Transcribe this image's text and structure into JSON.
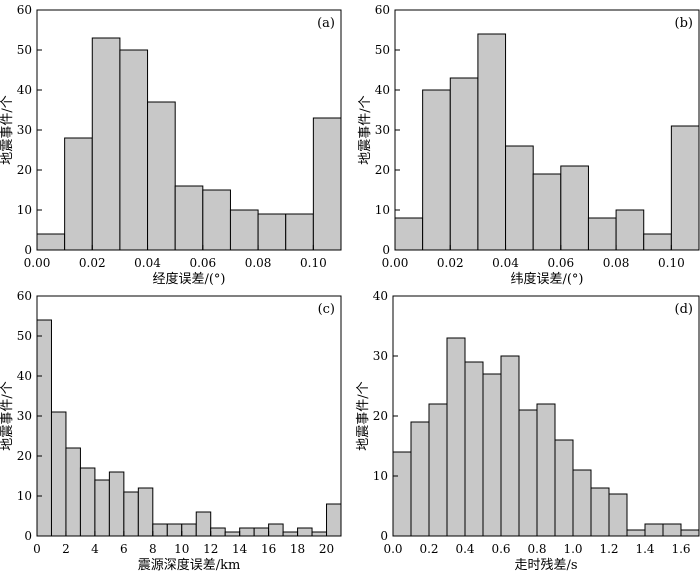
{
  "chart_data": [
    {
      "type": "bar",
      "panel": "(a)",
      "xlabel": "经度误差/(°)",
      "ylabel": "地震事件/个",
      "bin_width": 0.01,
      "bin_starts": [
        0.0,
        0.01,
        0.02,
        0.03,
        0.04,
        0.05,
        0.06,
        0.07,
        0.08,
        0.09,
        0.1
      ],
      "values": [
        4,
        28,
        53,
        50,
        37,
        16,
        15,
        10,
        9,
        9,
        33
      ],
      "xlim": [
        0,
        0.11
      ],
      "ylim": [
        0,
        60
      ],
      "xticks": [
        0,
        0.02,
        0.04,
        0.06,
        0.08,
        0.1
      ],
      "xtick_labels": [
        "0.00",
        "0.02",
        "0.04",
        "0.06",
        "0.08",
        "0.10"
      ],
      "yticks": [
        0,
        10,
        20,
        30,
        40,
        50,
        60
      ],
      "ytick_labels": [
        "0",
        "10",
        "20",
        "30",
        "40",
        "50",
        "60"
      ],
      "bar_color": "#c8c8c8"
    },
    {
      "type": "bar",
      "panel": "(b)",
      "xlabel": "纬度误差/(°)",
      "ylabel": "地震事件/个",
      "bin_width": 0.01,
      "bin_starts": [
        0.0,
        0.01,
        0.02,
        0.03,
        0.04,
        0.05,
        0.06,
        0.07,
        0.08,
        0.09,
        0.1
      ],
      "values": [
        8,
        40,
        43,
        54,
        26,
        19,
        21,
        8,
        10,
        4,
        31
      ],
      "xlim": [
        0,
        0.11
      ],
      "ylim": [
        0,
        60
      ],
      "xticks": [
        0,
        0.02,
        0.04,
        0.06,
        0.08,
        0.1
      ],
      "xtick_labels": [
        "0.00",
        "0.02",
        "0.04",
        "0.06",
        "0.08",
        "0.10"
      ],
      "yticks": [
        0,
        10,
        20,
        30,
        40,
        50,
        60
      ],
      "ytick_labels": [
        "0",
        "10",
        "20",
        "30",
        "40",
        "50",
        "60"
      ],
      "bar_color": "#c8c8c8"
    },
    {
      "type": "bar",
      "panel": "(c)",
      "xlabel": "震源深度误差/km",
      "ylabel": "地震事件/个",
      "bin_width": 1,
      "bin_starts": [
        0,
        1,
        2,
        3,
        4,
        5,
        6,
        7,
        8,
        9,
        10,
        11,
        12,
        13,
        14,
        15,
        16,
        17,
        18,
        19,
        20
      ],
      "values": [
        54,
        31,
        22,
        17,
        14,
        16,
        11,
        12,
        3,
        3,
        3,
        6,
        2,
        1,
        2,
        2,
        3,
        1,
        2,
        1,
        8
      ],
      "xlim": [
        0,
        21
      ],
      "ylim": [
        0,
        60
      ],
      "xticks": [
        0,
        2,
        4,
        6,
        8,
        10,
        12,
        14,
        16,
        18,
        20
      ],
      "xtick_labels": [
        "0",
        "2",
        "4",
        "6",
        "8",
        "10",
        "12",
        "14",
        "16",
        "18",
        "20"
      ],
      "yticks": [
        0,
        10,
        20,
        30,
        40,
        50,
        60
      ],
      "ytick_labels": [
        "0",
        "10",
        "20",
        "30",
        "40",
        "50",
        "60"
      ],
      "bar_color": "#c8c8c8"
    },
    {
      "type": "bar",
      "panel": "(d)",
      "xlabel": "走时残差/s",
      "ylabel": "地震事件/个",
      "bin_width": 0.1,
      "bin_starts": [
        0.0,
        0.1,
        0.2,
        0.3,
        0.4,
        0.5,
        0.6,
        0.7,
        0.8,
        0.9,
        1.0,
        1.1,
        1.2,
        1.3,
        1.4,
        1.5,
        1.6
      ],
      "values": [
        14,
        19,
        22,
        33,
        29,
        27,
        30,
        21,
        22,
        16,
        11,
        8,
        7,
        1,
        2,
        2,
        1
      ],
      "xlim": [
        0,
        1.7
      ],
      "ylim": [
        0,
        40
      ],
      "xticks": [
        0,
        0.2,
        0.4,
        0.6,
        0.8,
        1.0,
        1.2,
        1.4,
        1.6
      ],
      "xtick_labels": [
        "0.0",
        "0.2",
        "0.4",
        "0.6",
        "0.8",
        "1.0",
        "1.2",
        "1.4",
        "1.6"
      ],
      "yticks": [
        0,
        10,
        20,
        30,
        40
      ],
      "ytick_labels": [
        "0",
        "10",
        "20",
        "30",
        "40"
      ],
      "bar_color": "#c8c8c8"
    }
  ]
}
